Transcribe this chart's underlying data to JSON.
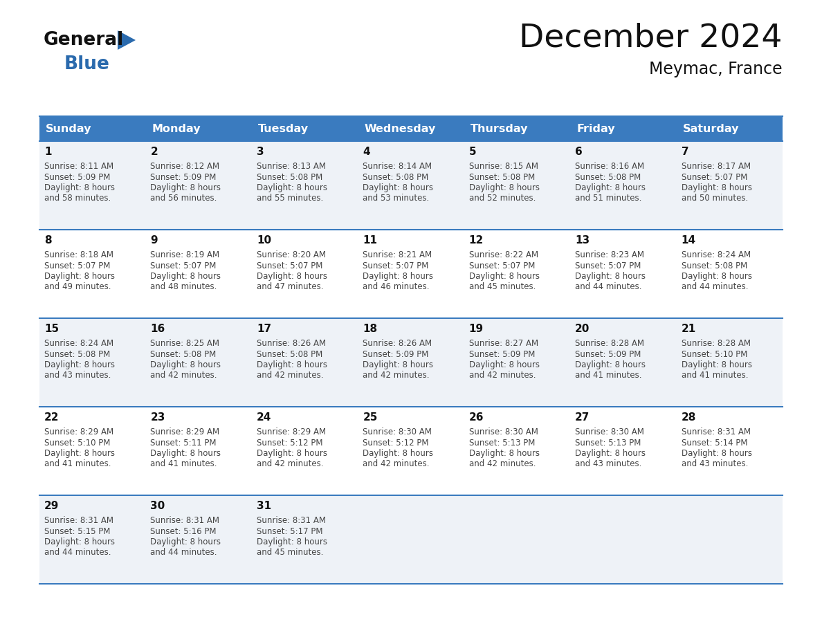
{
  "title": "December 2024",
  "subtitle": "Meymac, France",
  "header_bg": "#3a7bbf",
  "header_text": "#ffffff",
  "grid_line_color": "#3a7bbf",
  "day_names": [
    "Sunday",
    "Monday",
    "Tuesday",
    "Wednesday",
    "Thursday",
    "Friday",
    "Saturday"
  ],
  "days": [
    {
      "day": 1,
      "col": 0,
      "row": 0,
      "sunrise": "8:11 AM",
      "sunset": "5:09 PM",
      "daylight_hrs": 8,
      "daylight_min": 58
    },
    {
      "day": 2,
      "col": 1,
      "row": 0,
      "sunrise": "8:12 AM",
      "sunset": "5:09 PM",
      "daylight_hrs": 8,
      "daylight_min": 56
    },
    {
      "day": 3,
      "col": 2,
      "row": 0,
      "sunrise": "8:13 AM",
      "sunset": "5:08 PM",
      "daylight_hrs": 8,
      "daylight_min": 55
    },
    {
      "day": 4,
      "col": 3,
      "row": 0,
      "sunrise": "8:14 AM",
      "sunset": "5:08 PM",
      "daylight_hrs": 8,
      "daylight_min": 53
    },
    {
      "day": 5,
      "col": 4,
      "row": 0,
      "sunrise": "8:15 AM",
      "sunset": "5:08 PM",
      "daylight_hrs": 8,
      "daylight_min": 52
    },
    {
      "day": 6,
      "col": 5,
      "row": 0,
      "sunrise": "8:16 AM",
      "sunset": "5:08 PM",
      "daylight_hrs": 8,
      "daylight_min": 51
    },
    {
      "day": 7,
      "col": 6,
      "row": 0,
      "sunrise": "8:17 AM",
      "sunset": "5:07 PM",
      "daylight_hrs": 8,
      "daylight_min": 50
    },
    {
      "day": 8,
      "col": 0,
      "row": 1,
      "sunrise": "8:18 AM",
      "sunset": "5:07 PM",
      "daylight_hrs": 8,
      "daylight_min": 49
    },
    {
      "day": 9,
      "col": 1,
      "row": 1,
      "sunrise": "8:19 AM",
      "sunset": "5:07 PM",
      "daylight_hrs": 8,
      "daylight_min": 48
    },
    {
      "day": 10,
      "col": 2,
      "row": 1,
      "sunrise": "8:20 AM",
      "sunset": "5:07 PM",
      "daylight_hrs": 8,
      "daylight_min": 47
    },
    {
      "day": 11,
      "col": 3,
      "row": 1,
      "sunrise": "8:21 AM",
      "sunset": "5:07 PM",
      "daylight_hrs": 8,
      "daylight_min": 46
    },
    {
      "day": 12,
      "col": 4,
      "row": 1,
      "sunrise": "8:22 AM",
      "sunset": "5:07 PM",
      "daylight_hrs": 8,
      "daylight_min": 45
    },
    {
      "day": 13,
      "col": 5,
      "row": 1,
      "sunrise": "8:23 AM",
      "sunset": "5:07 PM",
      "daylight_hrs": 8,
      "daylight_min": 44
    },
    {
      "day": 14,
      "col": 6,
      "row": 1,
      "sunrise": "8:24 AM",
      "sunset": "5:08 PM",
      "daylight_hrs": 8,
      "daylight_min": 44
    },
    {
      "day": 15,
      "col": 0,
      "row": 2,
      "sunrise": "8:24 AM",
      "sunset": "5:08 PM",
      "daylight_hrs": 8,
      "daylight_min": 43
    },
    {
      "day": 16,
      "col": 1,
      "row": 2,
      "sunrise": "8:25 AM",
      "sunset": "5:08 PM",
      "daylight_hrs": 8,
      "daylight_min": 42
    },
    {
      "day": 17,
      "col": 2,
      "row": 2,
      "sunrise": "8:26 AM",
      "sunset": "5:08 PM",
      "daylight_hrs": 8,
      "daylight_min": 42
    },
    {
      "day": 18,
      "col": 3,
      "row": 2,
      "sunrise": "8:26 AM",
      "sunset": "5:09 PM",
      "daylight_hrs": 8,
      "daylight_min": 42
    },
    {
      "day": 19,
      "col": 4,
      "row": 2,
      "sunrise": "8:27 AM",
      "sunset": "5:09 PM",
      "daylight_hrs": 8,
      "daylight_min": 42
    },
    {
      "day": 20,
      "col": 5,
      "row": 2,
      "sunrise": "8:28 AM",
      "sunset": "5:09 PM",
      "daylight_hrs": 8,
      "daylight_min": 41
    },
    {
      "day": 21,
      "col": 6,
      "row": 2,
      "sunrise": "8:28 AM",
      "sunset": "5:10 PM",
      "daylight_hrs": 8,
      "daylight_min": 41
    },
    {
      "day": 22,
      "col": 0,
      "row": 3,
      "sunrise": "8:29 AM",
      "sunset": "5:10 PM",
      "daylight_hrs": 8,
      "daylight_min": 41
    },
    {
      "day": 23,
      "col": 1,
      "row": 3,
      "sunrise": "8:29 AM",
      "sunset": "5:11 PM",
      "daylight_hrs": 8,
      "daylight_min": 41
    },
    {
      "day": 24,
      "col": 2,
      "row": 3,
      "sunrise": "8:29 AM",
      "sunset": "5:12 PM",
      "daylight_hrs": 8,
      "daylight_min": 42
    },
    {
      "day": 25,
      "col": 3,
      "row": 3,
      "sunrise": "8:30 AM",
      "sunset": "5:12 PM",
      "daylight_hrs": 8,
      "daylight_min": 42
    },
    {
      "day": 26,
      "col": 4,
      "row": 3,
      "sunrise": "8:30 AM",
      "sunset": "5:13 PM",
      "daylight_hrs": 8,
      "daylight_min": 42
    },
    {
      "day": 27,
      "col": 5,
      "row": 3,
      "sunrise": "8:30 AM",
      "sunset": "5:13 PM",
      "daylight_hrs": 8,
      "daylight_min": 43
    },
    {
      "day": 28,
      "col": 6,
      "row": 3,
      "sunrise": "8:31 AM",
      "sunset": "5:14 PM",
      "daylight_hrs": 8,
      "daylight_min": 43
    },
    {
      "day": 29,
      "col": 0,
      "row": 4,
      "sunrise": "8:31 AM",
      "sunset": "5:15 PM",
      "daylight_hrs": 8,
      "daylight_min": 44
    },
    {
      "day": 30,
      "col": 1,
      "row": 4,
      "sunrise": "8:31 AM",
      "sunset": "5:16 PM",
      "daylight_hrs": 8,
      "daylight_min": 44
    },
    {
      "day": 31,
      "col": 2,
      "row": 4,
      "sunrise": "8:31 AM",
      "sunset": "5:17 PM",
      "daylight_hrs": 8,
      "daylight_min": 45
    }
  ],
  "num_rows": 5,
  "num_cols": 7,
  "text_color_dark": "#111111",
  "cell_text_color": "#444444",
  "day_num_color": "#111111",
  "logo_general_color": "#111111",
  "logo_blue_color": "#2a6aad",
  "logo_triangle_color": "#2a6aad",
  "cell_bg_odd": "#eef2f7",
  "cell_bg_even": "#ffffff"
}
